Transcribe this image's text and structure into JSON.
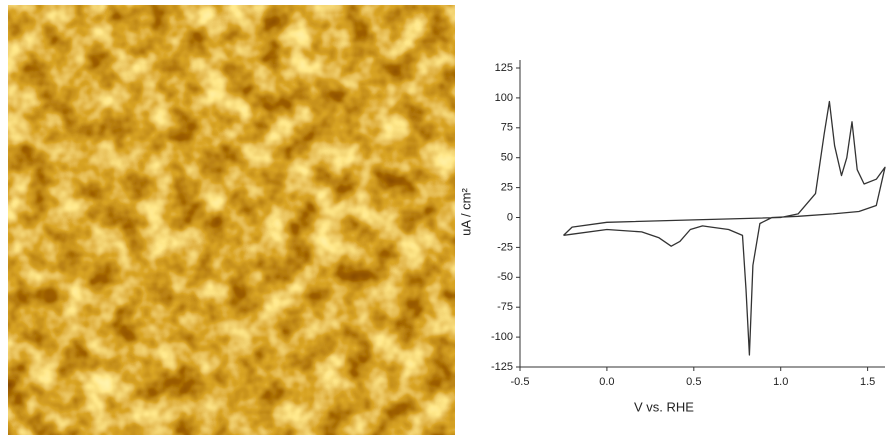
{
  "chart_data": {
    "type": "line",
    "x_label": "V  vs.  RHE",
    "y_label": "uA / cm²",
    "x": [
      -0.25,
      -0.2,
      0,
      0.5,
      1.0,
      1.1,
      1.2,
      1.25,
      1.28,
      1.31,
      1.35,
      1.38,
      1.41,
      1.44,
      1.48,
      1.55,
      1.6,
      1.55,
      1.45,
      1.3,
      1.1,
      0.95,
      0.88,
      0.84,
      0.82,
      0.8,
      0.78,
      0.7,
      0.6,
      0.55,
      0.48,
      0.42,
      0.37,
      0.3,
      0.2,
      0,
      -0.2,
      -0.25
    ],
    "series": [
      {
        "color": "#333333",
        "values": [
          -15,
          -8,
          -4,
          -2,
          0,
          3,
          20,
          70,
          97,
          60,
          35,
          50,
          80,
          40,
          28,
          32,
          42,
          10,
          5,
          3,
          1,
          0,
          -5,
          -40,
          -115,
          -60,
          -15,
          -10,
          -8,
          -7,
          -10,
          -20,
          -24,
          -17,
          -12,
          -10,
          -14,
          -15
        ]
      }
    ],
    "xlim": [
      -0.5,
      1.6
    ],
    "ylim": [
      -125,
      125
    ],
    "xticks": [
      -0.5,
      {
        "value": 0,
        "label": "0.0"
      },
      0.5,
      {
        "value": 1,
        "label": "1.0"
      },
      1.5
    ],
    "yticks": [
      -125,
      -100,
      -75,
      -50,
      -25,
      0,
      25,
      50,
      75,
      100,
      125
    ]
  }
}
